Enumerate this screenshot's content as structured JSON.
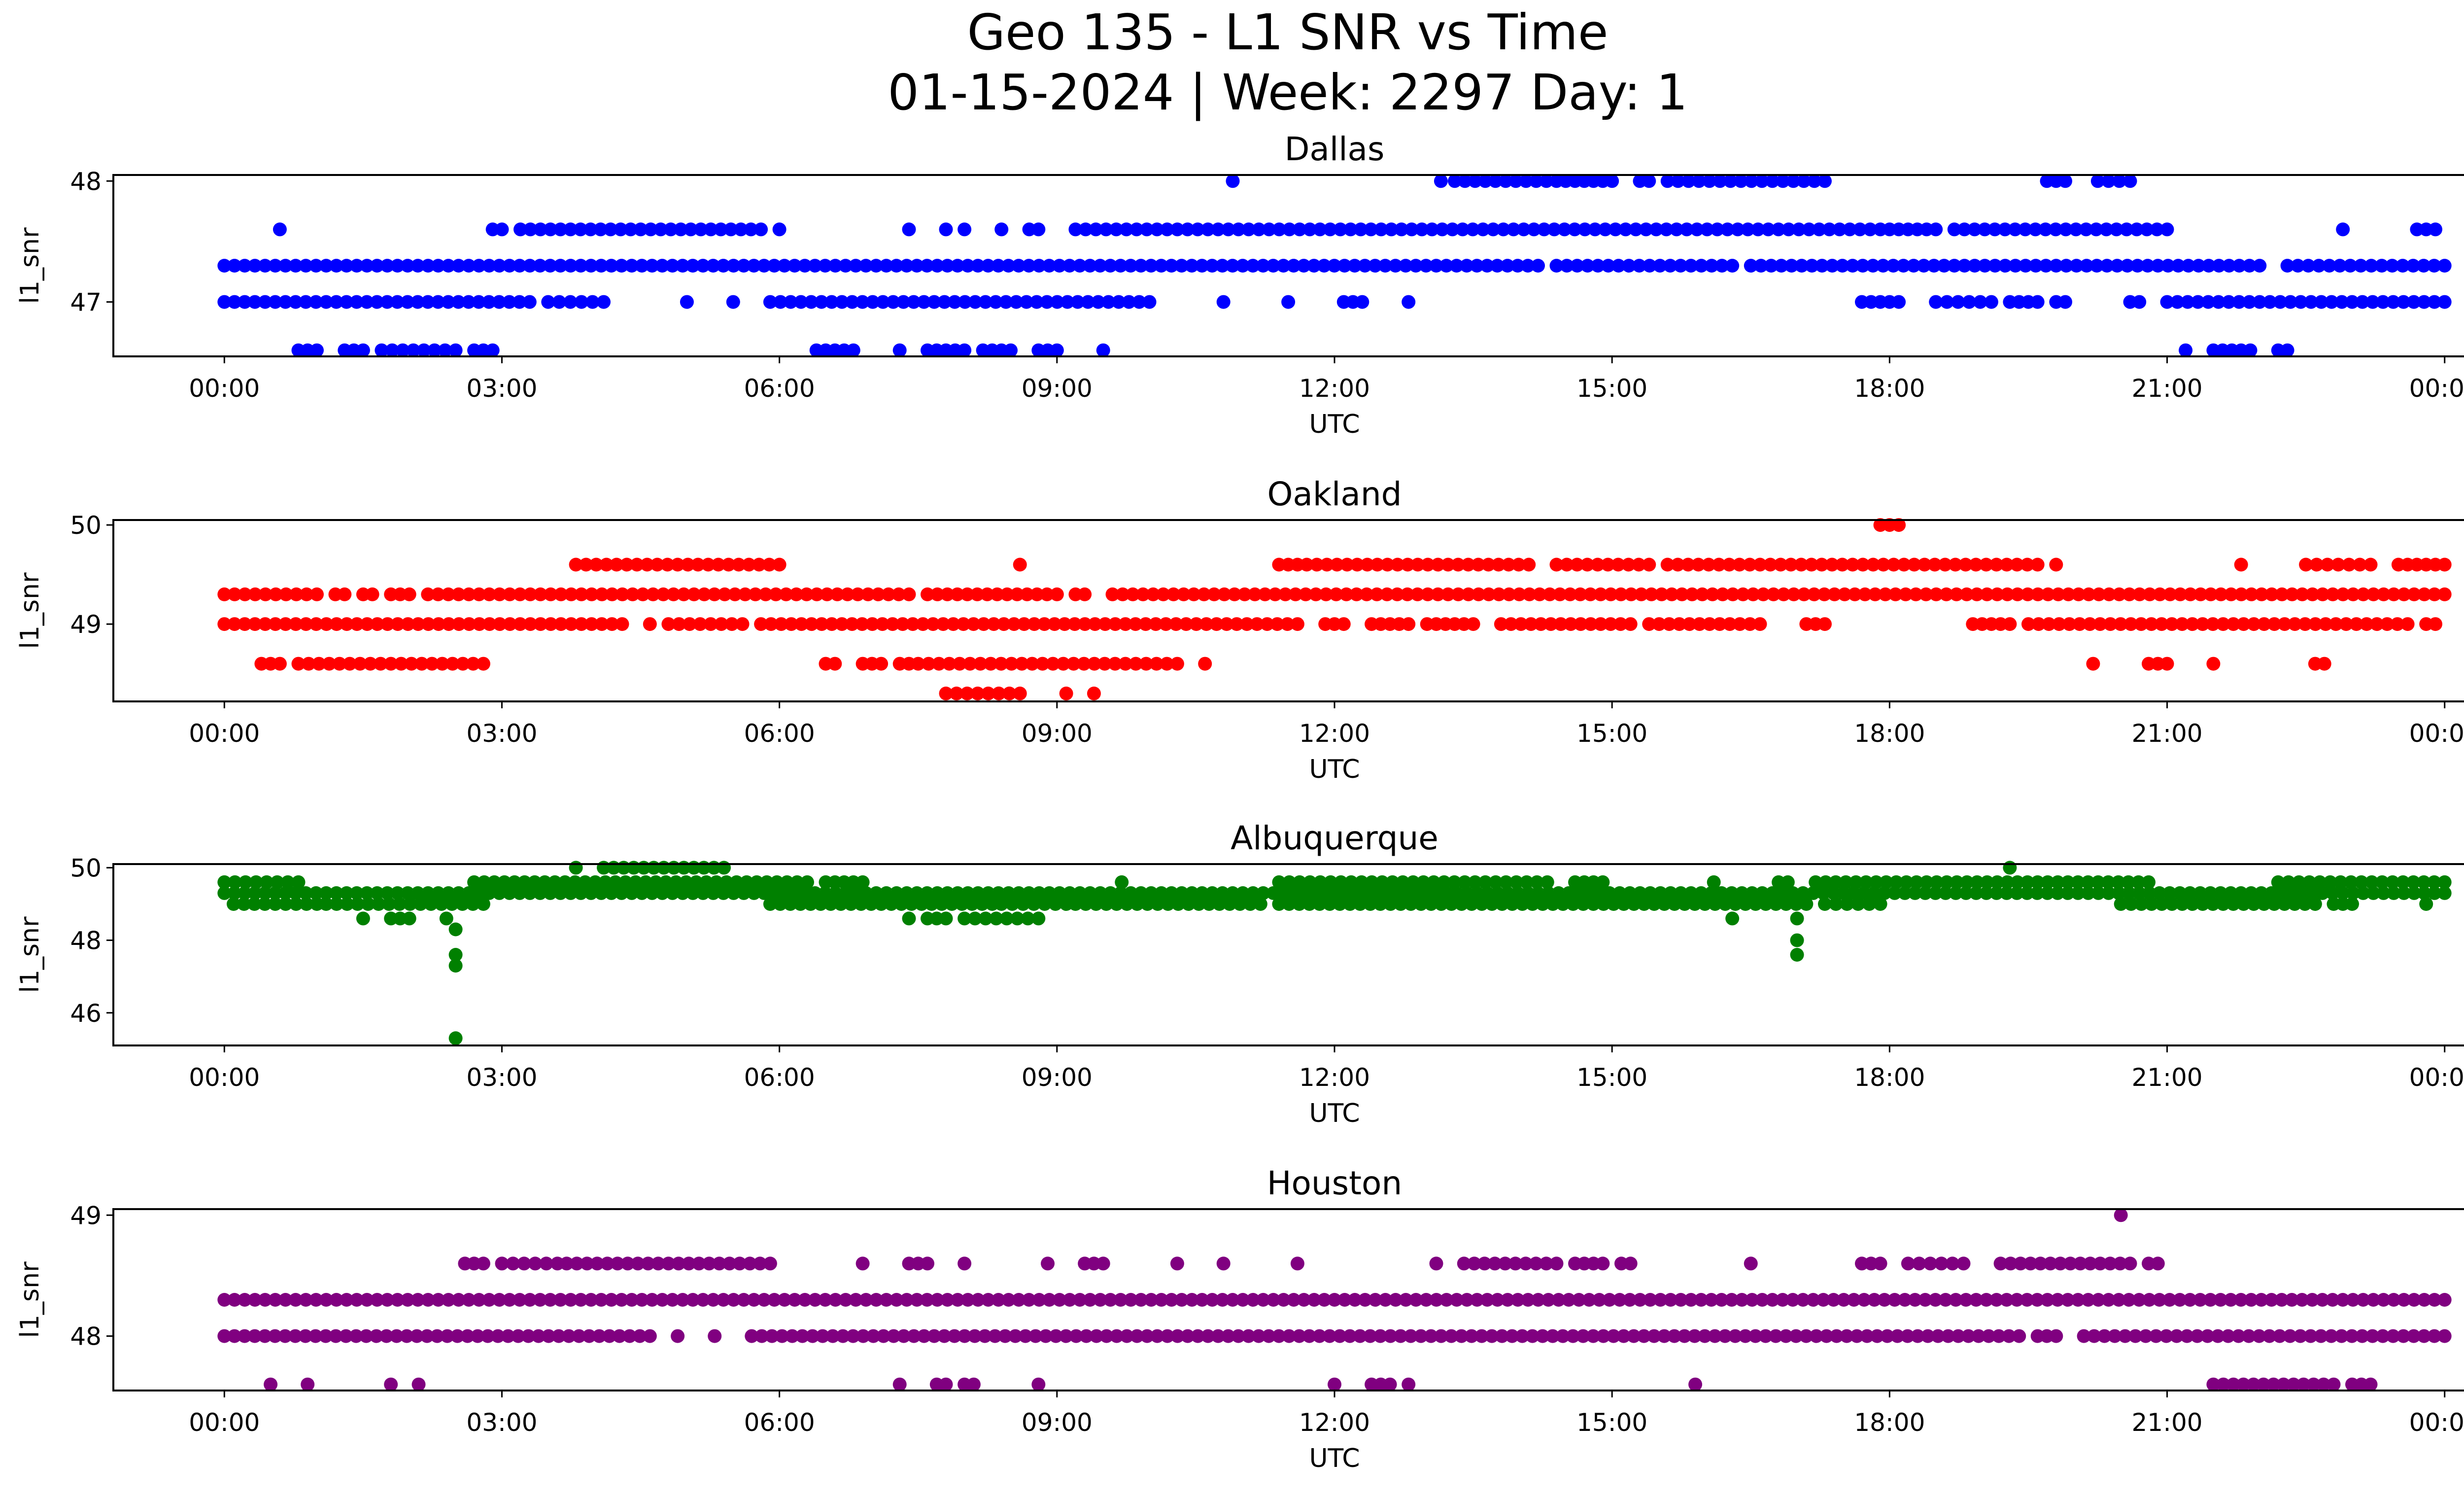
{
  "figure": {
    "title_line1": "Geo 135 - L1 SNR vs Time",
    "title_line2": "01-15-2024 | Week: 2297 Day: 1"
  },
  "chart_data": [
    {
      "type": "scatter",
      "title": "Dallas",
      "xlabel": "UTC",
      "ylabel": "l1_snr",
      "color": "#0000ff",
      "x_ticks": [
        "00:00",
        "03:00",
        "06:00",
        "09:00",
        "12:00",
        "15:00",
        "18:00",
        "21:00",
        "00:00"
      ],
      "x_range_hours": [
        -1.2,
        25.2
      ],
      "y_ticks": [
        47,
        48
      ],
      "ylim": [
        46.55,
        48.05
      ],
      "levels": [
        {
          "y": 48.0,
          "segments": [
            [
              10.9,
              10.9
            ],
            [
              13.15,
              13.15
            ],
            [
              13.3,
              14.4
            ],
            [
              14.5,
              15.0
            ],
            [
              15.3,
              15.4
            ],
            [
              15.6,
              17.3
            ],
            [
              19.7,
              19.9
            ],
            [
              20.25,
              20.6
            ]
          ]
        },
        {
          "y": 47.6,
          "segments": [
            [
              0.6,
              0.6
            ],
            [
              2.9,
              3.0
            ],
            [
              3.2,
              5.8
            ],
            [
              6.0,
              6.0
            ],
            [
              7.4,
              7.4
            ],
            [
              7.8,
              7.8
            ],
            [
              8.0,
              8.0
            ],
            [
              8.4,
              8.4
            ],
            [
              8.7,
              8.8
            ],
            [
              9.2,
              17.9
            ],
            [
              18.0,
              18.5
            ],
            [
              18.7,
              21.0
            ],
            [
              22.9,
              22.9
            ],
            [
              23.7,
              23.9
            ]
          ]
        },
        {
          "y": 47.3,
          "segments": [
            [
              0.0,
              14.2
            ],
            [
              14.4,
              16.3
            ],
            [
              16.5,
              22.0
            ],
            [
              22.3,
              24.0
            ]
          ]
        },
        {
          "y": 47.0,
          "segments": [
            [
              0.0,
              3.3
            ],
            [
              3.5,
              4.1
            ],
            [
              5.0,
              5.0
            ],
            [
              5.5,
              5.5
            ],
            [
              5.9,
              10.0
            ],
            [
              10.8,
              10.8
            ],
            [
              11.5,
              11.5
            ],
            [
              12.1,
              12.3
            ],
            [
              12.8,
              12.8
            ],
            [
              17.7,
              18.1
            ],
            [
              18.5,
              19.1
            ],
            [
              19.3,
              19.6
            ],
            [
              19.8,
              19.9
            ],
            [
              20.6,
              20.7
            ],
            [
              21.0,
              24.0
            ]
          ]
        },
        {
          "y": 46.6,
          "segments": [
            [
              0.8,
              1.0
            ],
            [
              1.3,
              1.5
            ],
            [
              1.7,
              2.5
            ],
            [
              2.7,
              2.9
            ],
            [
              6.4,
              6.8
            ],
            [
              7.3,
              7.3
            ],
            [
              7.6,
              8.0
            ],
            [
              8.2,
              8.5
            ],
            [
              8.8,
              9.0
            ],
            [
              9.5,
              9.5
            ],
            [
              21.2,
              21.2
            ],
            [
              21.5,
              21.9
            ],
            [
              22.2,
              22.3
            ]
          ]
        }
      ]
    },
    {
      "type": "scatter",
      "title": "Oakland",
      "xlabel": "UTC",
      "ylabel": "l1_snr",
      "color": "#ff0000",
      "x_ticks": [
        "00:00",
        "03:00",
        "06:00",
        "09:00",
        "12:00",
        "15:00",
        "18:00",
        "21:00",
        "00:00"
      ],
      "x_range_hours": [
        -1.2,
        25.2
      ],
      "y_ticks": [
        49,
        50
      ],
      "ylim": [
        48.22,
        50.05
      ],
      "levels": [
        {
          "y": 50.0,
          "segments": [
            [
              17.9,
              18.1
            ]
          ]
        },
        {
          "y": 49.6,
          "segments": [
            [
              3.8,
              6.0
            ],
            [
              8.6,
              8.6
            ],
            [
              11.4,
              11.6
            ],
            [
              11.7,
              14.1
            ],
            [
              14.4,
              15.4
            ],
            [
              15.6,
              19.6
            ],
            [
              19.8,
              19.8
            ],
            [
              21.8,
              21.8
            ],
            [
              22.5,
              23.2
            ],
            [
              23.5,
              24.0
            ]
          ]
        },
        {
          "y": 49.3,
          "segments": [
            [
              0.0,
              1.0
            ],
            [
              1.2,
              1.3
            ],
            [
              1.5,
              1.6
            ],
            [
              1.8,
              2.0
            ],
            [
              2.2,
              7.4
            ],
            [
              7.6,
              9.0
            ],
            [
              9.2,
              9.3
            ],
            [
              9.6,
              24.0
            ]
          ]
        },
        {
          "y": 49.0,
          "segments": [
            [
              0.0,
              4.3
            ],
            [
              4.6,
              4.6
            ],
            [
              4.8,
              5.6
            ],
            [
              5.8,
              11.6
            ],
            [
              11.9,
              12.1
            ],
            [
              12.4,
              12.8
            ],
            [
              13.0,
              13.5
            ],
            [
              13.8,
              15.2
            ],
            [
              15.4,
              16.6
            ],
            [
              17.1,
              17.3
            ],
            [
              18.9,
              19.3
            ],
            [
              19.5,
              23.6
            ],
            [
              23.8,
              23.9
            ]
          ]
        },
        {
          "y": 48.6,
          "segments": [
            [
              0.4,
              0.6
            ],
            [
              0.8,
              2.8
            ],
            [
              6.5,
              6.6
            ],
            [
              6.9,
              7.1
            ],
            [
              7.3,
              7.4
            ],
            [
              7.5,
              10.3
            ],
            [
              10.6,
              10.6
            ],
            [
              20.2,
              20.2
            ],
            [
              20.8,
              21.0
            ],
            [
              21.5,
              21.5
            ],
            [
              22.6,
              22.7
            ]
          ]
        },
        {
          "y": 48.3,
          "segments": [
            [
              7.8,
              8.6
            ],
            [
              9.1,
              9.1
            ],
            [
              9.4,
              9.4
            ]
          ]
        }
      ]
    },
    {
      "type": "scatter",
      "title": "Albuquerque",
      "xlabel": "UTC",
      "ylabel": "l1_snr",
      "color": "#008000",
      "x_ticks": [
        "00:00",
        "03:00",
        "06:00",
        "09:00",
        "12:00",
        "15:00",
        "18:00",
        "21:00",
        "00:00"
      ],
      "x_range_hours": [
        -1.2,
        25.2
      ],
      "y_ticks": [
        46,
        48,
        50
      ],
      "ylim": [
        45.1,
        50.1
      ],
      "levels": [
        {
          "y": 50.0,
          "segments": [
            [
              3.8,
              3.8
            ],
            [
              4.1,
              5.4
            ],
            [
              19.3,
              19.3
            ]
          ]
        },
        {
          "y": 49.6,
          "segments": [
            [
              0.0,
              0.8
            ],
            [
              2.7,
              6.3
            ],
            [
              6.5,
              6.9
            ],
            [
              9.7,
              9.7
            ],
            [
              11.4,
              14.3
            ],
            [
              14.6,
              14.9
            ],
            [
              16.1,
              16.1
            ],
            [
              16.8,
              16.9
            ],
            [
              17.2,
              20.8
            ],
            [
              22.2,
              24.0
            ]
          ]
        },
        {
          "y": 49.3,
          "segments": [
            [
              0.0,
              24.0
            ]
          ]
        },
        {
          "y": 49.0,
          "segments": [
            [
              0.1,
              1.0
            ],
            [
              1.1,
              2.8
            ],
            [
              5.9,
              8.3
            ],
            [
              8.4,
              9.1
            ],
            [
              9.2,
              11.2
            ],
            [
              11.4,
              17.1
            ],
            [
              17.3,
              17.9
            ],
            [
              20.5,
              22.6
            ],
            [
              22.8,
              23.0
            ],
            [
              23.8,
              23.8
            ]
          ]
        },
        {
          "y": 48.6,
          "segments": [
            [
              1.5,
              1.5
            ],
            [
              1.8,
              2.0
            ],
            [
              2.4,
              2.4
            ],
            [
              7.4,
              7.4
            ],
            [
              7.6,
              7.8
            ],
            [
              8.0,
              8.8
            ],
            [
              16.3,
              16.3
            ],
            [
              17.0,
              17.0
            ]
          ]
        },
        {
          "y": 48.3,
          "segments": [
            [
              2.5,
              2.5
            ]
          ]
        },
        {
          "y": 48.0,
          "segments": [
            [
              17.0,
              17.0
            ]
          ]
        },
        {
          "y": 47.6,
          "segments": [
            [
              2.5,
              2.5
            ],
            [
              17.0,
              17.0
            ]
          ]
        },
        {
          "y": 47.3,
          "segments": [
            [
              2.5,
              2.5
            ]
          ]
        },
        {
          "y": 45.3,
          "segments": [
            [
              2.5,
              2.5
            ]
          ]
        }
      ]
    },
    {
      "type": "scatter",
      "title": "Houston",
      "xlabel": "UTC",
      "ylabel": "l1_snr",
      "color": "#800080",
      "x_ticks": [
        "00:00",
        "03:00",
        "06:00",
        "09:00",
        "12:00",
        "15:00",
        "18:00",
        "21:00",
        "00:00"
      ],
      "x_range_hours": [
        -1.2,
        25.2
      ],
      "y_ticks": [
        48,
        49
      ],
      "ylim": [
        47.55,
        49.05
      ],
      "levels": [
        {
          "y": 49.0,
          "segments": [
            [
              20.5,
              20.5
            ]
          ]
        },
        {
          "y": 48.6,
          "segments": [
            [
              2.6,
              2.8
            ],
            [
              3.0,
              3.6
            ],
            [
              3.7,
              5.9
            ],
            [
              6.9,
              6.9
            ],
            [
              7.4,
              7.6
            ],
            [
              8.0,
              8.0
            ],
            [
              8.9,
              8.9
            ],
            [
              9.3,
              9.5
            ],
            [
              10.3,
              10.3
            ],
            [
              10.8,
              10.8
            ],
            [
              11.6,
              11.6
            ],
            [
              13.1,
              13.1
            ],
            [
              13.4,
              14.4
            ],
            [
              14.6,
              14.9
            ],
            [
              15.1,
              15.2
            ],
            [
              16.5,
              16.5
            ],
            [
              17.7,
              17.9
            ],
            [
              18.2,
              18.8
            ],
            [
              19.2,
              20.6
            ],
            [
              20.8,
              20.9
            ]
          ]
        },
        {
          "y": 48.3,
          "segments": [
            [
              0.0,
              24.0
            ]
          ]
        },
        {
          "y": 48.0,
          "segments": [
            [
              0.0,
              4.6
            ],
            [
              4.9,
              4.9
            ],
            [
              5.3,
              5.3
            ],
            [
              5.7,
              19.4
            ],
            [
              19.6,
              19.8
            ],
            [
              20.1,
              24.0
            ]
          ]
        },
        {
          "y": 47.6,
          "segments": [
            [
              0.5,
              0.5
            ],
            [
              0.9,
              0.9
            ],
            [
              1.8,
              1.8
            ],
            [
              2.1,
              2.1
            ],
            [
              7.3,
              7.3
            ],
            [
              7.7,
              7.8
            ],
            [
              8.0,
              8.1
            ],
            [
              8.8,
              8.8
            ],
            [
              12.0,
              12.0
            ],
            [
              12.4,
              12.6
            ],
            [
              12.8,
              12.8
            ],
            [
              15.9,
              15.9
            ],
            [
              21.5,
              22.8
            ],
            [
              23.0,
              23.2
            ]
          ]
        }
      ]
    }
  ]
}
